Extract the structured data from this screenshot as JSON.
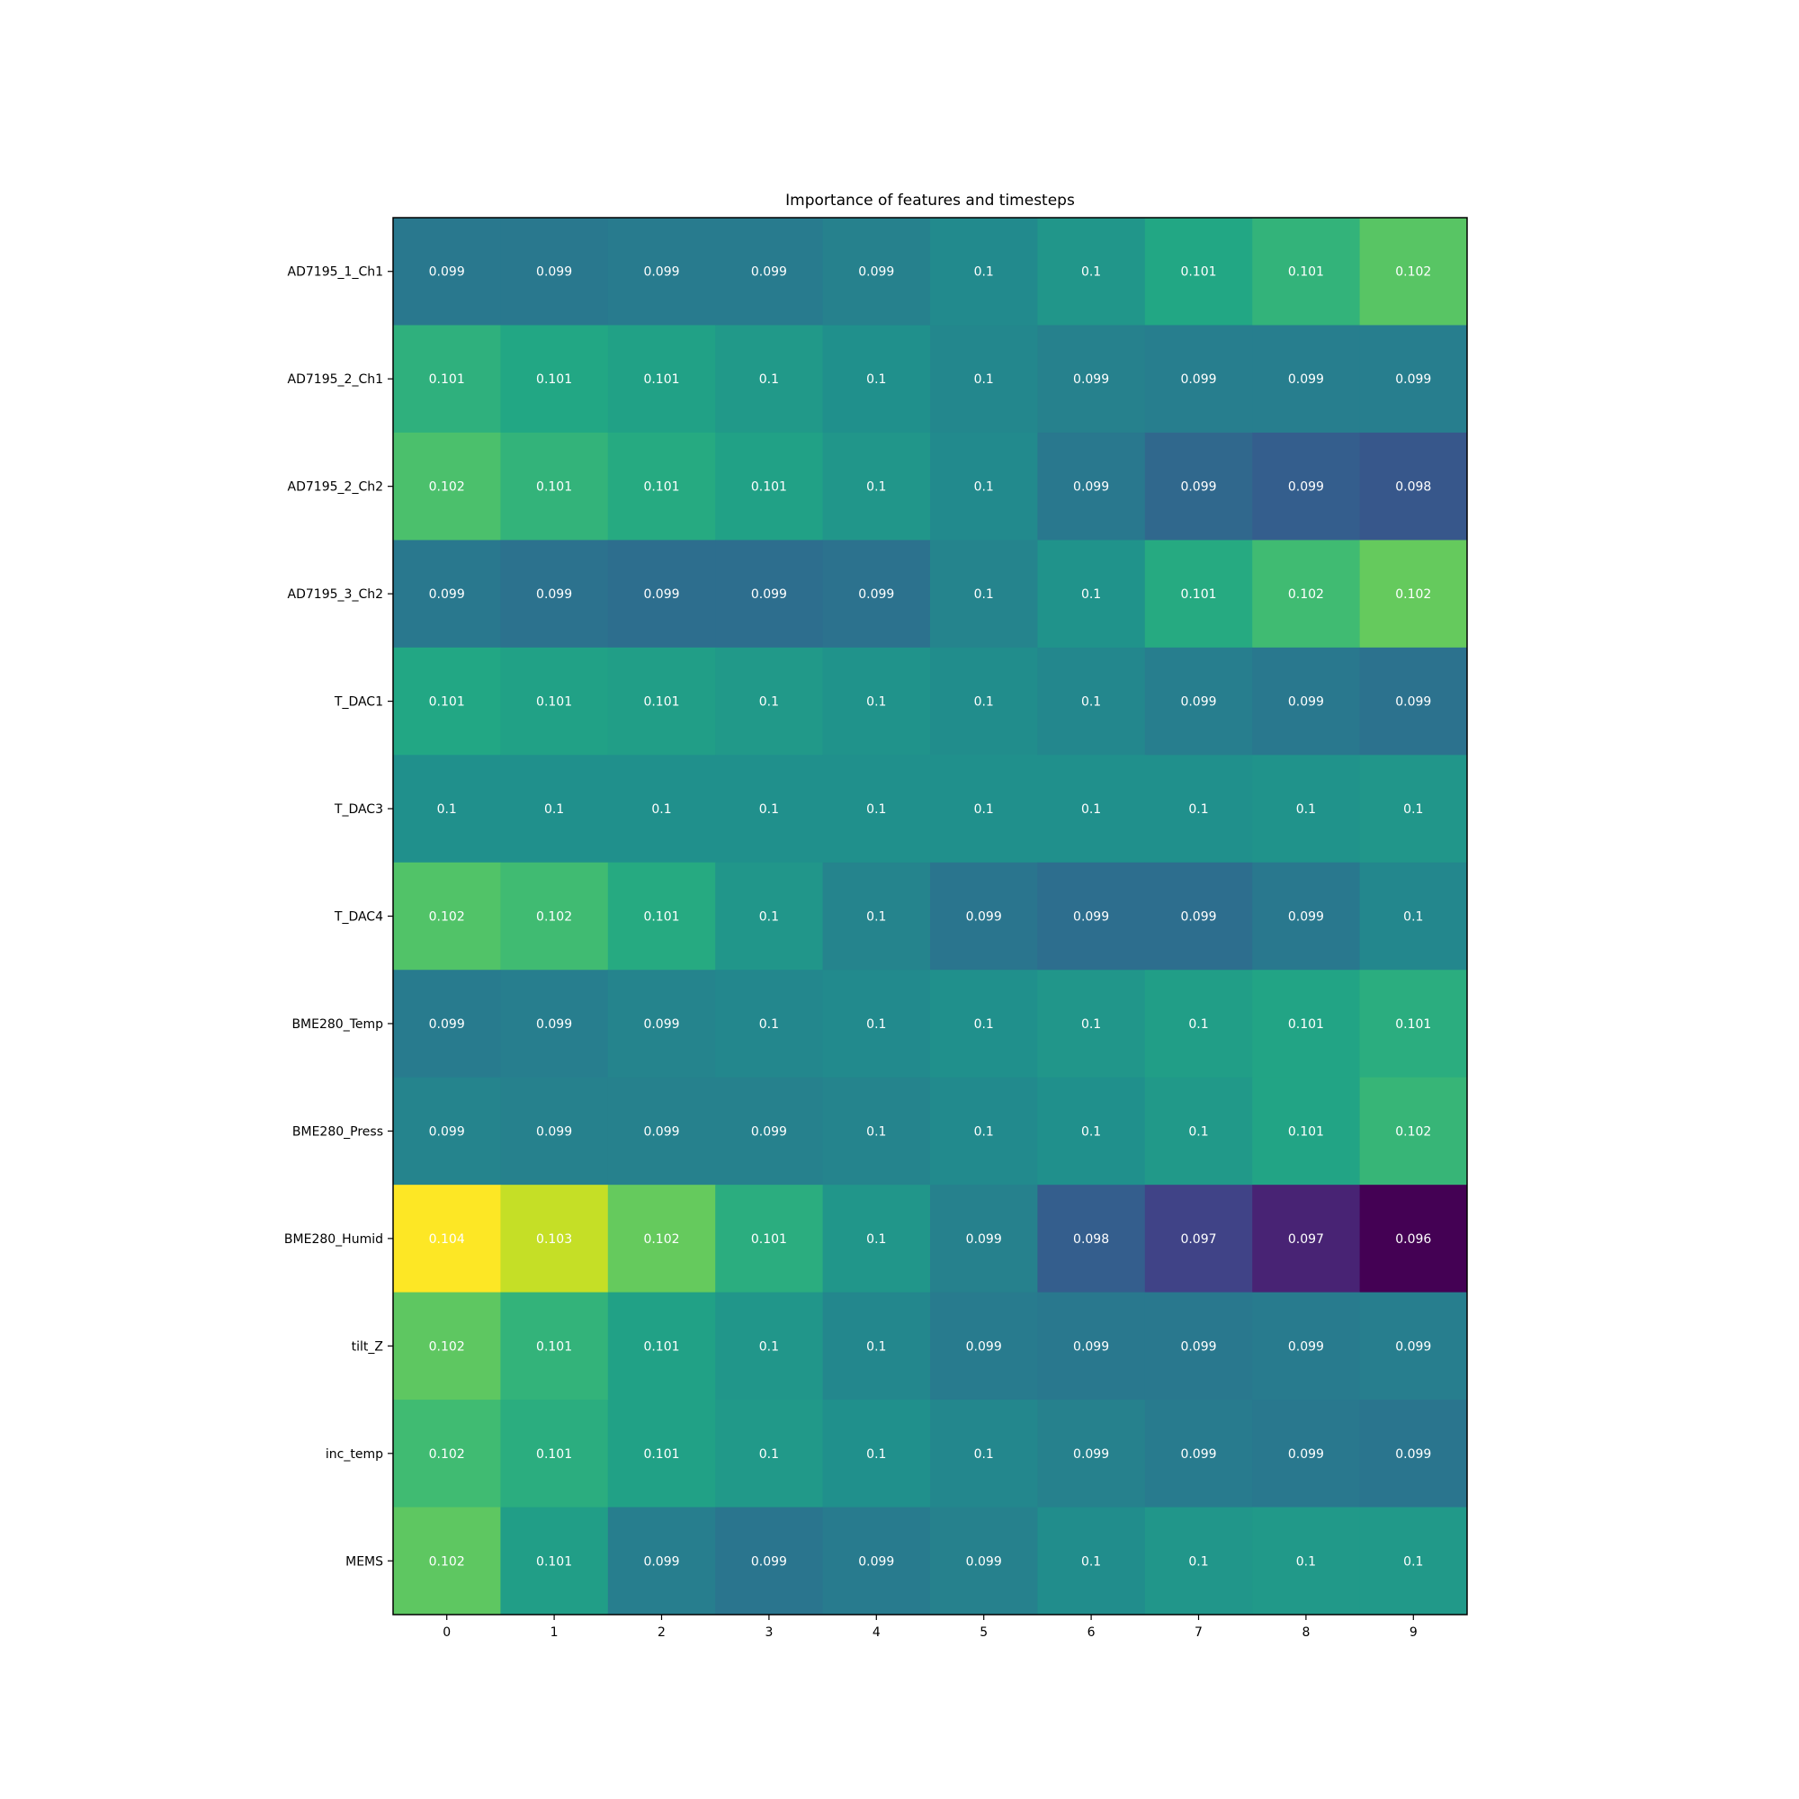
{
  "chart_data": {
    "type": "heatmap",
    "title": "Importance of features and timesteps",
    "xlabel": "",
    "ylabel": "",
    "colormap": "viridis",
    "grid": false,
    "legend": "none",
    "x_categories": [
      "0",
      "1",
      "2",
      "3",
      "4",
      "5",
      "6",
      "7",
      "8",
      "9"
    ],
    "y_categories": [
      "AD7195_1_Ch1",
      "AD7195_2_Ch1",
      "AD7195_2_Ch2",
      "AD7195_3_Ch2",
      "T_DAC1",
      "T_DAC3",
      "T_DAC4",
      "BME280_Temp",
      "BME280_Press",
      "BME280_Humid",
      "tilt_Z",
      "inc_temp",
      "MEMS"
    ],
    "labels": [
      [
        "0.099",
        "0.099",
        "0.099",
        "0.099",
        "0.099",
        "0.1",
        "0.1",
        "0.101",
        "0.101",
        "0.102"
      ],
      [
        "0.101",
        "0.101",
        "0.101",
        "0.1",
        "0.1",
        "0.1",
        "0.099",
        "0.099",
        "0.099",
        "0.099"
      ],
      [
        "0.102",
        "0.101",
        "0.101",
        "0.101",
        "0.1",
        "0.1",
        "0.099",
        "0.099",
        "0.099",
        "0.098"
      ],
      [
        "0.099",
        "0.099",
        "0.099",
        "0.099",
        "0.099",
        "0.1",
        "0.1",
        "0.101",
        "0.102",
        "0.102"
      ],
      [
        "0.101",
        "0.101",
        "0.101",
        "0.1",
        "0.1",
        "0.1",
        "0.1",
        "0.099",
        "0.099",
        "0.099"
      ],
      [
        "0.1",
        "0.1",
        "0.1",
        "0.1",
        "0.1",
        "0.1",
        "0.1",
        "0.1",
        "0.1",
        "0.1"
      ],
      [
        "0.102",
        "0.102",
        "0.101",
        "0.1",
        "0.1",
        "0.099",
        "0.099",
        "0.099",
        "0.099",
        "0.1"
      ],
      [
        "0.099",
        "0.099",
        "0.099",
        "0.1",
        "0.1",
        "0.1",
        "0.1",
        "0.1",
        "0.101",
        "0.101"
      ],
      [
        "0.099",
        "0.099",
        "0.099",
        "0.099",
        "0.1",
        "0.1",
        "0.1",
        "0.1",
        "0.101",
        "0.102"
      ],
      [
        "0.104",
        "0.103",
        "0.102",
        "0.101",
        "0.1",
        "0.099",
        "0.098",
        "0.097",
        "0.097",
        "0.096"
      ],
      [
        "0.102",
        "0.101",
        "0.101",
        "0.1",
        "0.1",
        "0.099",
        "0.099",
        "0.099",
        "0.099",
        "0.099"
      ],
      [
        "0.102",
        "0.101",
        "0.101",
        "0.1",
        "0.1",
        "0.1",
        "0.099",
        "0.099",
        "0.099",
        "0.099"
      ],
      [
        "0.102",
        "0.101",
        "0.099",
        "0.099",
        "0.099",
        "0.099",
        "0.1",
        "0.1",
        "0.1",
        "0.1"
      ]
    ],
    "values": [
      [
        0.0992,
        0.0992,
        0.0993,
        0.0993,
        0.0995,
        0.0998,
        0.1002,
        0.1008,
        0.1012,
        0.1019
      ],
      [
        0.1011,
        0.1008,
        0.1006,
        0.1003,
        0.1,
        0.0997,
        0.0995,
        0.0994,
        0.0994,
        0.0994
      ],
      [
        0.1017,
        0.1012,
        0.1009,
        0.1006,
        0.1002,
        0.0998,
        0.0992,
        0.0987,
        0.0984,
        0.0982
      ],
      [
        0.0992,
        0.099,
        0.0989,
        0.0989,
        0.099,
        0.0996,
        0.1001,
        0.1009,
        0.1015,
        0.1021
      ],
      [
        0.1008,
        0.1006,
        0.1005,
        0.1003,
        0.1001,
        0.0999,
        0.0997,
        0.0994,
        0.0992,
        0.099
      ],
      [
        0.1,
        0.1,
        0.1,
        0.1,
        0.1,
        0.1,
        0.1,
        0.1,
        0.1001,
        0.1002
      ],
      [
        0.1018,
        0.1015,
        0.1009,
        0.1002,
        0.0996,
        0.0991,
        0.0989,
        0.0989,
        0.0992,
        0.0997
      ],
      [
        0.0993,
        0.0994,
        0.0996,
        0.0997,
        0.0998,
        0.1,
        0.1002,
        0.1005,
        0.1007,
        0.101
      ],
      [
        0.0996,
        0.0995,
        0.0995,
        0.0995,
        0.0996,
        0.0998,
        0.1,
        0.1003,
        0.1007,
        0.1013
      ],
      [
        0.104,
        0.1033,
        0.1021,
        0.101,
        0.1002,
        0.0995,
        0.0984,
        0.0976,
        0.0968,
        0.096
      ],
      [
        0.102,
        0.1012,
        0.1006,
        0.1002,
        0.0997,
        0.0993,
        0.0992,
        0.0992,
        0.0993,
        0.0994
      ],
      [
        0.1015,
        0.101,
        0.1006,
        0.1003,
        0.1,
        0.0997,
        0.0995,
        0.0993,
        0.0992,
        0.0991
      ],
      [
        0.102,
        0.1005,
        0.0994,
        0.0991,
        0.0993,
        0.0995,
        0.0999,
        0.1002,
        0.1003,
        0.1003
      ]
    ],
    "colorscale_range": [
      0.096,
      0.104
    ]
  }
}
